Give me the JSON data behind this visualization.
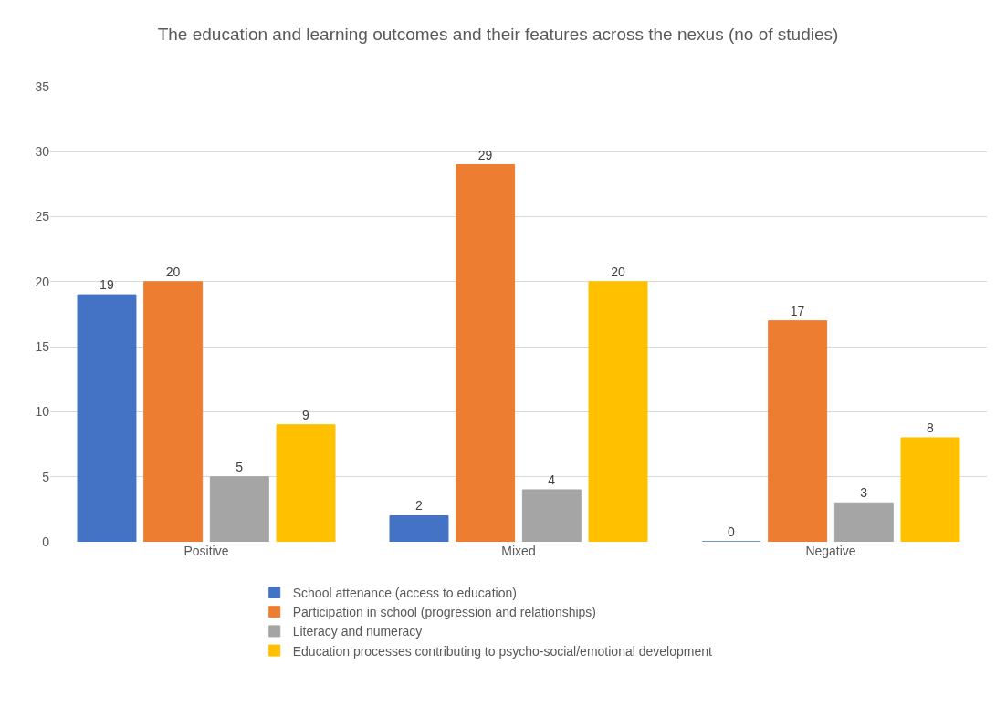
{
  "chart_data": {
    "type": "bar",
    "title": "The education and learning outcomes and their features across the nexus (no of studies)",
    "categories": [
      "Positive",
      "Mixed",
      "Negative"
    ],
    "series": [
      {
        "name": "School attenance (access to education)",
        "color": "#4472c4",
        "values": [
          19,
          2,
          0
        ]
      },
      {
        "name": "Participation in school (progression and relationships)",
        "color": "#ed7d31",
        "values": [
          20,
          29,
          17
        ]
      },
      {
        "name": "Literacy and numeracy",
        "color": "#a5a5a5",
        "values": [
          5,
          4,
          3
        ]
      },
      {
        "name": "Education processes contributing to psycho-social/emotional development",
        "color": "#ffc000",
        "values": [
          9,
          20,
          8
        ]
      }
    ],
    "ylim": [
      0,
      35
    ],
    "yticks": [
      0,
      5,
      10,
      15,
      20,
      25,
      30,
      35
    ],
    "grid": "y",
    "legend": "bottom",
    "data_labels": true
  }
}
